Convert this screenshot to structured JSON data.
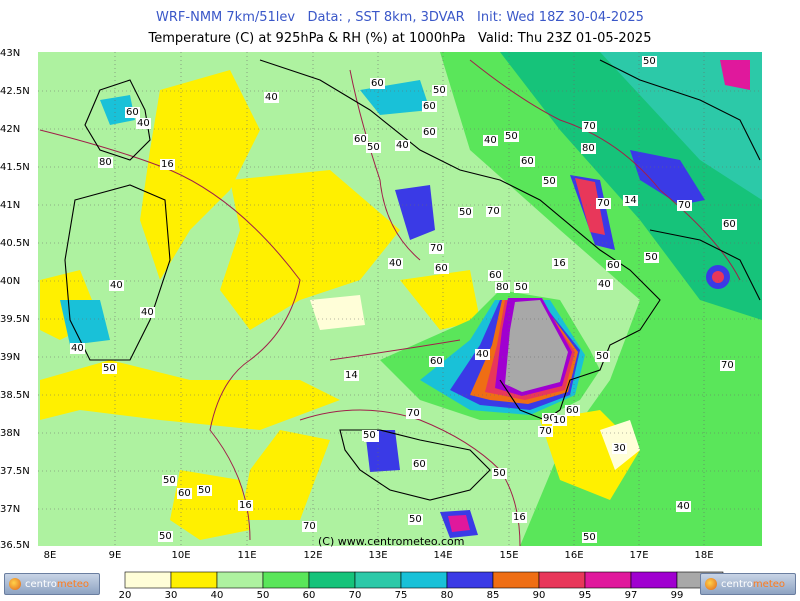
{
  "header": {
    "line1": "WRF-NMM 7km/51lev   Data: , SST 8km, 3DVAR   Init: Wed 18Z 30-04-2025",
    "line2": "Temperature (C) at 925hPa & RH (%) at 1000hPa   Valid: Thu 23Z 01-05-2025"
  },
  "axes": {
    "lat_labels": [
      "43N",
      "42.5N",
      "42N",
      "41.5N",
      "41N",
      "40.5N",
      "40N",
      "39.5N",
      "39N",
      "38.5N",
      "38N",
      "37.5N",
      "37N",
      "36.5N"
    ],
    "lon_labels": [
      "8E",
      "9E",
      "10E",
      "11E",
      "12E",
      "13E",
      "14E",
      "15E",
      "16E",
      "17E",
      "18E"
    ]
  },
  "map_labels": {
    "rh_contour_labels": [
      "50",
      "60",
      "40",
      "50",
      "60",
      "40",
      "60",
      "60",
      "50",
      "40",
      "60",
      "50",
      "70",
      "80",
      "60",
      "80",
      "70",
      "50",
      "40",
      "50",
      "70",
      "60",
      "14",
      "40",
      "90",
      "70",
      "80",
      "50",
      "60",
      "60",
      "50",
      "40",
      "40",
      "40",
      "40",
      "50",
      "40",
      "60",
      "70",
      "70",
      "50",
      "60",
      "90",
      "10",
      "70",
      "30",
      "40",
      "50",
      "60",
      "50",
      "40",
      "50",
      "50",
      "60",
      "50",
      "16",
      "50",
      "70",
      "60",
      "70",
      "50",
      "40"
    ],
    "temp_contour_labels": [
      "16",
      "16",
      "14",
      "16",
      "16"
    ],
    "colors": {
      "rh20": "#fffed8",
      "rh30": "#fff000",
      "rh40": "#aef2a0",
      "rh50": "#5ae65a",
      "rh60": "#16c37a",
      "rh70": "#2cc9a8",
      "rh75": "#19c1d8",
      "rh80": "#3a3ae6",
      "rh85": "#ef6e14",
      "rh90": "#e8375a",
      "rh95": "#e0189c",
      "rh97": "#a000d0",
      "rh99": "#a8a8a8"
    }
  },
  "copyright": "(C) www.centrometeo.com",
  "colorbar": {
    "ticks": [
      "20",
      "30",
      "40",
      "50",
      "60",
      "70",
      "75",
      "80",
      "85",
      "90",
      "95",
      "97",
      "99"
    ],
    "colors": [
      "#fffed8",
      "#fff000",
      "#aef2a0",
      "#5ae65a",
      "#16c37a",
      "#2cc9a8",
      "#19c1d8",
      "#3a3ae6",
      "#ef6e14",
      "#e8375a",
      "#e0189c",
      "#a000d0",
      "#a8a8a8"
    ]
  },
  "logos": {
    "left_text_a": "centro",
    "left_text_b": "meteo",
    "right_text_a": "centro",
    "right_text_b": "meteo"
  }
}
